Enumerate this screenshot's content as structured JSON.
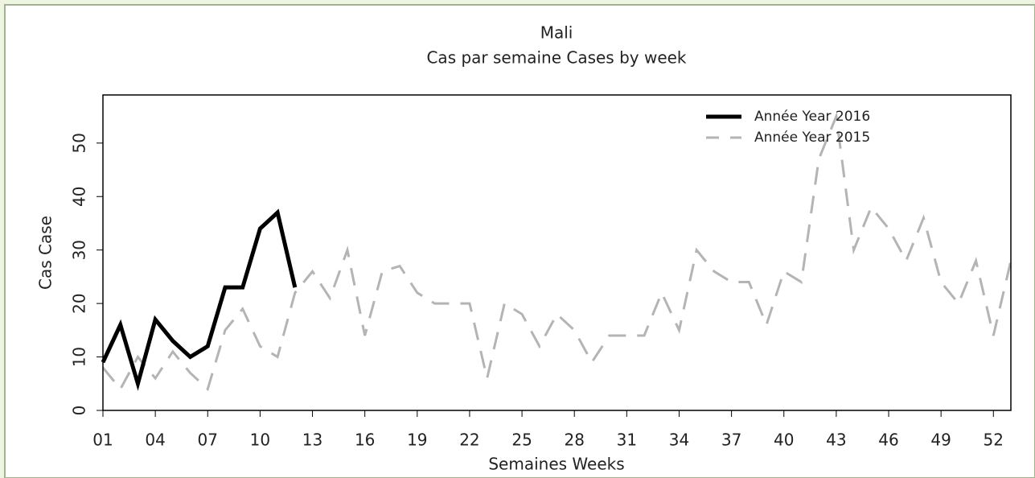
{
  "chart_data": {
    "type": "line",
    "title": "Mali",
    "subtitle": "Cas par semaine Cases by week",
    "x_label": "Semaines Weeks",
    "y_label": "Cas Case",
    "xlim": [
      1,
      53
    ],
    "ylim": [
      0,
      59
    ],
    "xticks": [
      {
        "value": 1,
        "label": "01"
      },
      {
        "value": 4,
        "label": "04"
      },
      {
        "value": 7,
        "label": "07"
      },
      10,
      13,
      16,
      19,
      22,
      25,
      28,
      31,
      34,
      37,
      40,
      43,
      46,
      49,
      52
    ],
    "yticks": [
      0,
      10,
      20,
      30,
      40,
      50
    ],
    "legend": "top-right",
    "series": [
      {
        "name": "Année Year 2016",
        "color": "#000000",
        "style": "solid",
        "x": [
          1,
          2,
          3,
          4,
          5,
          6,
          7,
          8,
          9,
          10,
          11,
          12
        ],
        "values": [
          9,
          16,
          5,
          17,
          13,
          10,
          12,
          23,
          23,
          34,
          37,
          23
        ]
      },
      {
        "name": "Année Year 2015",
        "color": "#b4b4b4",
        "style": "dashed",
        "x": [
          1,
          2,
          3,
          4,
          5,
          6,
          7,
          8,
          9,
          10,
          11,
          12,
          13,
          14,
          15,
          16,
          17,
          18,
          19,
          20,
          21,
          22,
          23,
          24,
          25,
          26,
          27,
          28,
          29,
          30,
          31,
          32,
          33,
          34,
          35,
          36,
          37,
          38,
          39,
          40,
          41,
          42,
          43,
          44,
          45,
          46,
          47,
          48,
          49,
          50,
          51,
          52,
          53
        ],
        "values": [
          8,
          4,
          10,
          6,
          11,
          7,
          4,
          15,
          19,
          12,
          10,
          22,
          26,
          21,
          30,
          14,
          26,
          27,
          22,
          20,
          20,
          20,
          6,
          20,
          18,
          12,
          18,
          15,
          9,
          14,
          14,
          14,
          22,
          15,
          30,
          26,
          24,
          24,
          16,
          26,
          24,
          47,
          55,
          30,
          38,
          34,
          28,
          36,
          24,
          20,
          28,
          14,
          28
        ]
      }
    ]
  }
}
